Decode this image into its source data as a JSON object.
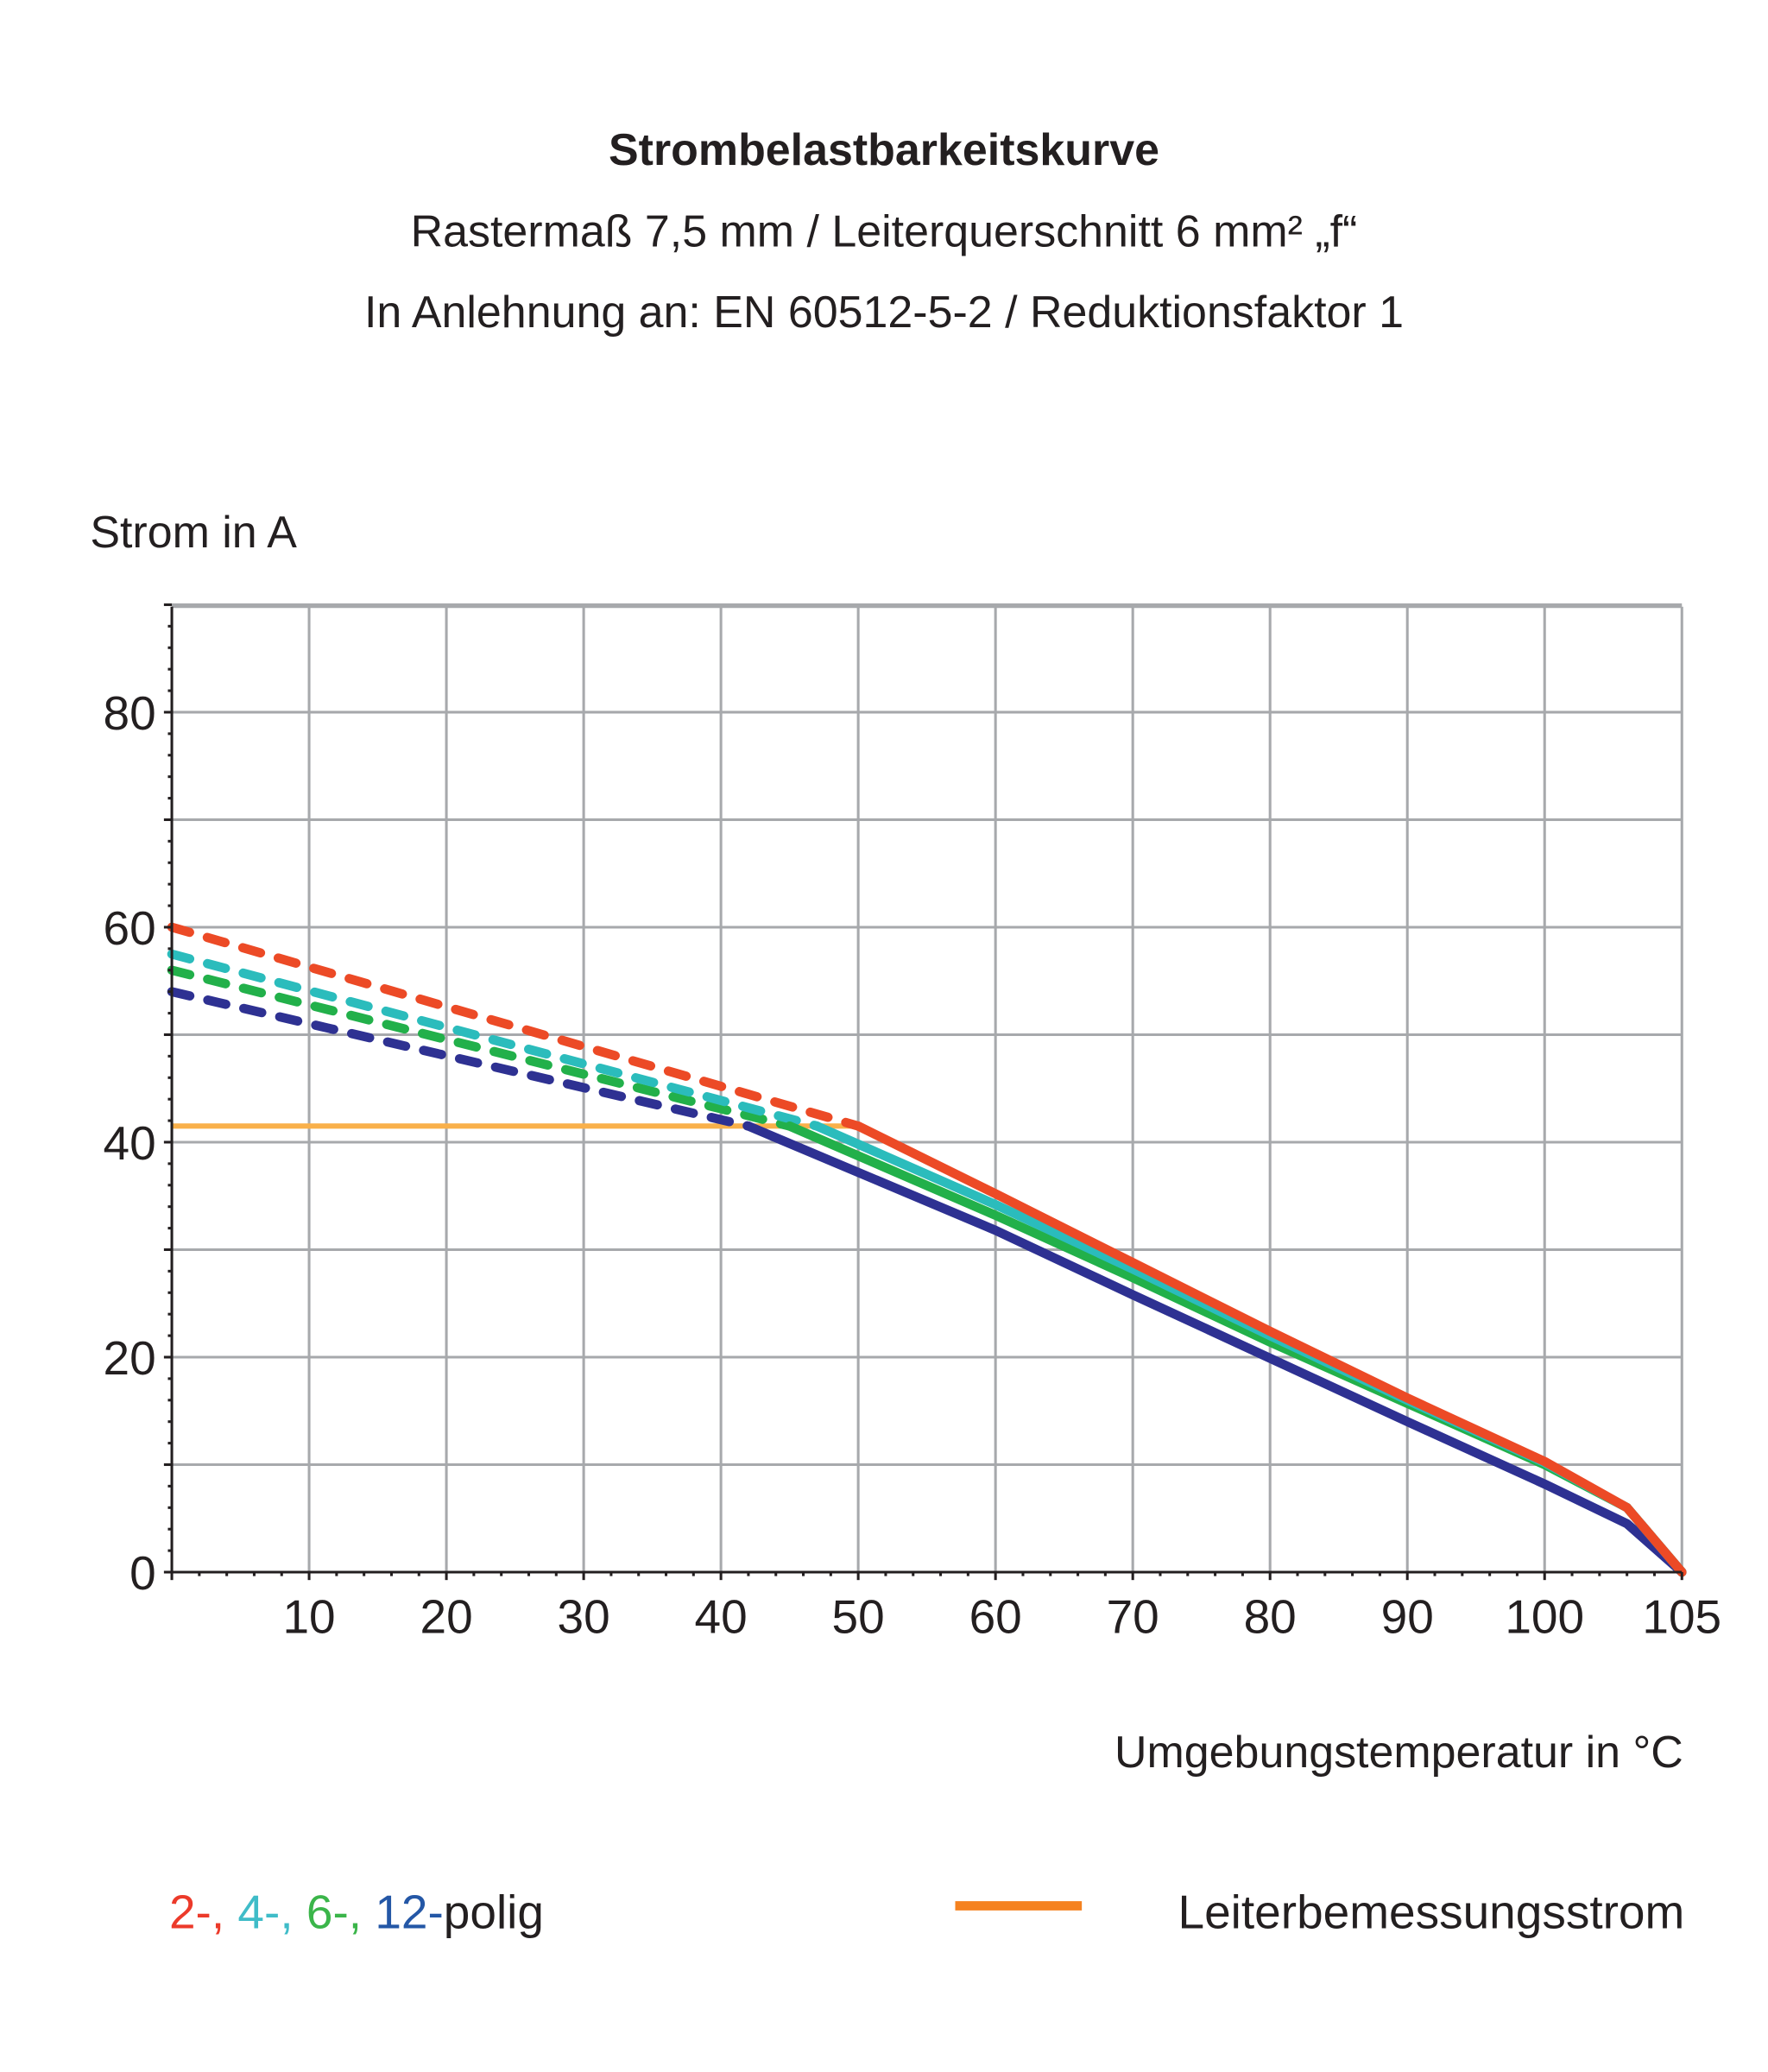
{
  "chart_data": {
    "type": "line",
    "title": "Strombelastbarkeitskurve",
    "subtitle": [
      "Rastermaß 7,5 mm / Leiterquerschnitt 6 mm² „f“",
      "In Anlehnung an: EN 60512-5-2 / Reduktionsfaktor 1"
    ],
    "ylabel": "Strom in A",
    "xlabel": "Umgebungstemperatur in °C",
    "ylim": [
      0,
      90
    ],
    "x_ticks": [
      "10",
      "20",
      "30",
      "40",
      "50",
      "60",
      "70",
      "80",
      "90",
      "100",
      "105"
    ],
    "y_ticks": [
      "0",
      "20",
      "40",
      "60",
      "80"
    ],
    "grid": true,
    "series": [
      {
        "key": "2",
        "color": "#ec4a26",
        "dashed": [
          [
            0,
            60
          ],
          [
            50,
            41.5
          ]
        ],
        "solid": [
          [
            50,
            41.5
          ],
          [
            60,
            35.2
          ],
          [
            70,
            28.8
          ],
          [
            80,
            22.4
          ],
          [
            90,
            16.2
          ],
          [
            100,
            10.3
          ],
          [
            103,
            6
          ],
          [
            105,
            0
          ]
        ]
      },
      {
        "key": "4",
        "color": "#2bbcbc",
        "dashed": [
          [
            0,
            57.5
          ],
          [
            47,
            41.5
          ]
        ],
        "solid": [
          [
            47,
            41.5
          ],
          [
            60,
            34.2
          ],
          [
            70,
            28.2
          ],
          [
            80,
            22
          ],
          [
            90,
            16
          ],
          [
            100,
            10.2
          ],
          [
            103,
            6
          ],
          [
            105,
            0
          ]
        ]
      },
      {
        "key": "6",
        "color": "#22b04a",
        "dashed": [
          [
            0,
            56
          ],
          [
            45,
            41.5
          ]
        ],
        "solid": [
          [
            45,
            41.5
          ],
          [
            60,
            33.2
          ],
          [
            70,
            27.4
          ],
          [
            80,
            21.4
          ],
          [
            90,
            15.7
          ],
          [
            100,
            10
          ],
          [
            103,
            6
          ],
          [
            105,
            0
          ]
        ]
      },
      {
        "key": "12",
        "color": "#2e3192",
        "dashed": [
          [
            0,
            54
          ],
          [
            42,
            41.5
          ]
        ],
        "solid": [
          [
            42,
            41.5
          ],
          [
            60,
            31.8
          ],
          [
            70,
            25.8
          ],
          [
            80,
            19.9
          ],
          [
            90,
            14
          ],
          [
            100,
            8.2
          ],
          [
            103,
            4.5
          ],
          [
            105,
            0
          ]
        ]
      }
    ],
    "rated_current": {
      "name": "Leiterbemessungsstrom",
      "color": "#f9b04a",
      "legend_color": "#f58220",
      "value": 41.5,
      "x_range": [
        0,
        50
      ]
    },
    "legend": {
      "parts": [
        {
          "text": "2-,",
          "color": "#ec3a2a"
        },
        {
          "text": " 4-,",
          "color": "#3fbcc8"
        },
        {
          "text": " 6-,",
          "color": "#3bb54a"
        },
        {
          "text": " 12-",
          "color": "#2457a6"
        },
        {
          "text": "polig",
          "color": "#231f20"
        }
      ],
      "rated_label": "Leiterbemessungsstrom"
    }
  }
}
